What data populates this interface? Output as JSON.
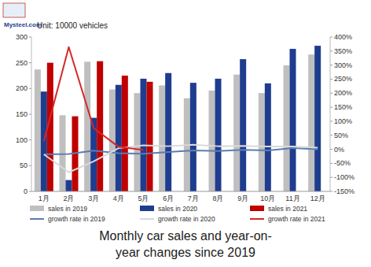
{
  "chart_data": {
    "type": "bar",
    "title": "Monthly car sales and year-on-year changes since 2019",
    "subtitle": "Unit: 10000 vehicles",
    "source": "Mysteel.com",
    "categories": [
      "1月",
      "2月",
      "3月",
      "4月",
      "5月",
      "6月",
      "7月",
      "8月",
      "9月",
      "10月",
      "11月",
      "12月"
    ],
    "series": [
      {
        "name": "sales in 2019",
        "type": "bar",
        "color": "#bfbfbf",
        "values": [
          237,
          148,
          252,
          198,
          191,
          206,
          181,
          196,
          227,
          191,
          245,
          266
        ]
      },
      {
        "name": "sales in 2020",
        "type": "bar",
        "color": "#1f3d8f",
        "values": [
          194,
          22,
          143,
          207,
          219,
          230,
          211,
          219,
          257,
          210,
          277,
          283
        ]
      },
      {
        "name": "sales in 2021",
        "type": "bar",
        "color": "#c00000",
        "values": [
          250,
          146,
          253,
          225,
          213,
          null,
          null,
          null,
          null,
          null,
          null,
          null
        ]
      },
      {
        "name": "growth rate in 2019",
        "type": "line",
        "axis": "y2",
        "color": "#5b7db1",
        "values": [
          -18,
          -17,
          -5,
          -14,
          -16,
          -10,
          -4,
          -6,
          -2,
          -4,
          4,
          0
        ]
      },
      {
        "name": "growth rate in 2020",
        "type": "line",
        "axis": "y2",
        "color": "#d9d9d9",
        "values": [
          -18,
          -82,
          -43,
          4,
          14,
          11,
          16,
          11,
          12,
          10,
          10,
          6
        ]
      },
      {
        "name": "growth rate in 2021",
        "type": "line",
        "axis": "y2",
        "color": "#d62728",
        "values": [
          29,
          364,
          75,
          9,
          -3,
          null,
          null,
          null,
          null,
          null,
          null,
          null
        ]
      }
    ],
    "ylim": [
      0,
      300
    ],
    "yticks": [
      0,
      50,
      100,
      150,
      200,
      250,
      300
    ],
    "y2lim": [
      -150,
      400
    ],
    "y2ticks": [
      {
        "value": -150,
        "label": "-150%"
      },
      {
        "value": -100,
        "label": "-100%"
      },
      {
        "value": -50,
        "label": "-50%"
      },
      {
        "value": 0,
        "label": "0%"
      },
      {
        "value": 50,
        "label": "50%"
      },
      {
        "value": 100,
        "label": "100%"
      },
      {
        "value": 150,
        "label": "150%"
      },
      {
        "value": 200,
        "label": "200%"
      },
      {
        "value": 250,
        "label": "250%"
      },
      {
        "value": 300,
        "label": "300%"
      },
      {
        "value": 350,
        "label": "350%"
      },
      {
        "value": 400,
        "label": "400%"
      }
    ],
    "grid": false,
    "legend": "bottom"
  }
}
